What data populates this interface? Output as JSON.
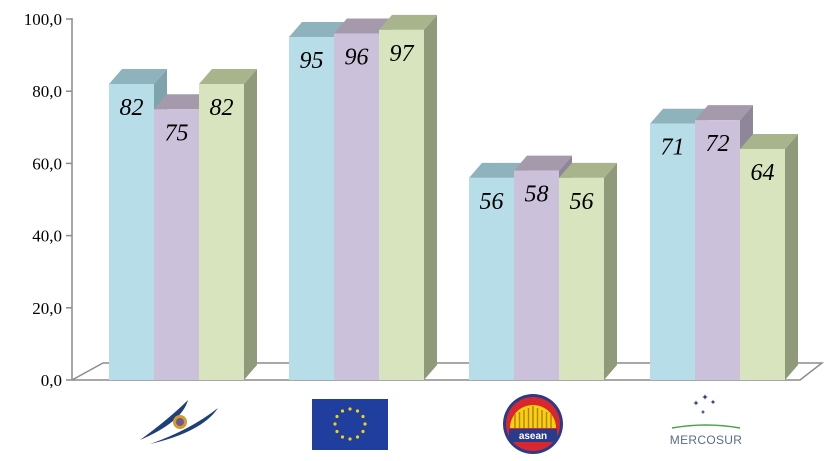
{
  "chart_data": {
    "type": "bar",
    "style": "3d-clustered-column",
    "categories": [
      "EAEU",
      "EU",
      "ASEAN",
      "MERCOSUR"
    ],
    "series": [
      {
        "values": [
          82,
          95,
          56,
          71
        ],
        "color": "#b7dde8",
        "side_color": "#7fa3ad",
        "top_color": "#8fb3bd"
      },
      {
        "values": [
          75,
          96,
          58,
          72
        ],
        "color": "#ccc1da",
        "side_color": "#8f8799",
        "top_color": "#a49aab"
      },
      {
        "values": [
          82,
          97,
          56,
          64
        ],
        "color": "#d7e4bd",
        "side_color": "#8f9a7a",
        "top_color": "#a8b58c"
      }
    ],
    "data_labels": [
      [
        "82",
        "95",
        "56",
        "71"
      ],
      [
        "75",
        "96",
        "58",
        "72"
      ],
      [
        "82",
        "97",
        "56",
        "64"
      ]
    ],
    "ylim": [
      0,
      100
    ],
    "yticks": [
      "0,0",
      "20,0",
      "40,0",
      "60,0",
      "80,0",
      "100,0"
    ],
    "grid": false,
    "legend": "none",
    "category_logos": [
      {
        "icon": "eaeu-emblem-icon"
      },
      {
        "icon": "eu-flag-icon"
      },
      {
        "icon": "asean-emblem-icon",
        "text": "asean"
      },
      {
        "icon": "mercosur-logo-icon",
        "text": "MERCOSUR"
      }
    ]
  }
}
